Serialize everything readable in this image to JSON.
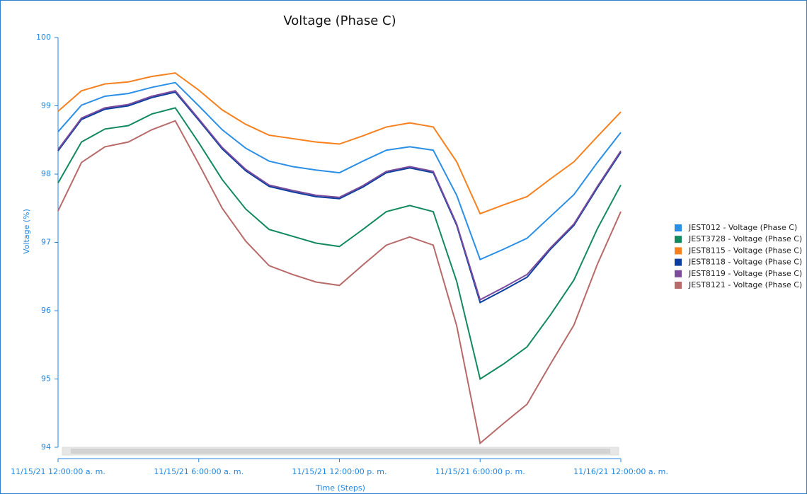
{
  "chart_data": {
    "type": "line",
    "title": "Voltage (Phase C)",
    "x_label": "Time (Steps)",
    "y_label": "Voltage (%)",
    "x": [
      0,
      1,
      2,
      3,
      4,
      5,
      6,
      7,
      8,
      9,
      10,
      11,
      12,
      13,
      14,
      15,
      16,
      17,
      18,
      19,
      20,
      21,
      22,
      23,
      24
    ],
    "xlim": [
      0,
      24
    ],
    "xticks": [
      {
        "value": 0,
        "label": "11/15/21 12:00:00 a. m."
      },
      {
        "value": 6,
        "label": "11/15/21 6:00:00 a. m."
      },
      {
        "value": 12,
        "label": "11/15/21 12:00:00 p. m."
      },
      {
        "value": 18,
        "label": "11/15/21 6:00:00 p. m."
      },
      {
        "value": 24,
        "label": "11/16/21 12:00:00 a. m."
      }
    ],
    "ylim": [
      94,
      100
    ],
    "yticks": [
      94,
      95,
      96,
      97,
      98,
      99,
      100
    ],
    "series": [
      {
        "name": "JEST012 - Voltage (Phase C)",
        "color": "#2b8fe6",
        "values": [
          98.62,
          99.01,
          99.14,
          99.18,
          99.27,
          99.34,
          99.0,
          98.65,
          98.38,
          98.19,
          98.11,
          98.06,
          98.02,
          98.19,
          98.35,
          98.4,
          98.35,
          97.69,
          96.75,
          96.9,
          97.06,
          97.38,
          97.7,
          98.17,
          98.61
        ]
      },
      {
        "name": "JEST3728 - Voltage (Phase C)",
        "color": "#138a5e",
        "values": [
          97.87,
          98.47,
          98.66,
          98.71,
          98.88,
          98.97,
          98.46,
          97.92,
          97.49,
          97.19,
          97.09,
          96.99,
          96.94,
          97.19,
          97.45,
          97.54,
          97.45,
          96.43,
          95.0,
          95.22,
          95.47,
          95.94,
          96.45,
          97.2,
          97.84
        ]
      },
      {
        "name": "JEST8115 - Voltage (Phase C)",
        "color": "#f7801f",
        "values": [
          98.92,
          99.22,
          99.32,
          99.35,
          99.43,
          99.48,
          99.23,
          98.94,
          98.73,
          98.57,
          98.52,
          98.47,
          98.44,
          98.56,
          98.69,
          98.75,
          98.69,
          98.18,
          97.42,
          97.55,
          97.67,
          97.93,
          98.18,
          98.55,
          98.91
        ]
      },
      {
        "name": "JEST8118 - Voltage (Phase C)",
        "color": "#0a3fa0",
        "values": [
          98.34,
          98.8,
          98.95,
          99.0,
          99.12,
          99.2,
          98.79,
          98.37,
          98.05,
          97.82,
          97.74,
          97.67,
          97.64,
          97.81,
          98.02,
          98.09,
          98.02,
          97.25,
          96.12,
          96.3,
          96.49,
          96.9,
          97.25,
          97.8,
          98.32
        ]
      },
      {
        "name": "JEST8119 - Voltage (Phase C)",
        "color": "#7b4c9e",
        "values": [
          98.36,
          98.82,
          98.97,
          99.02,
          99.14,
          99.22,
          98.81,
          98.39,
          98.07,
          97.84,
          97.76,
          97.69,
          97.66,
          97.83,
          98.04,
          98.11,
          98.04,
          97.27,
          96.16,
          96.34,
          96.53,
          96.92,
          97.27,
          97.82,
          98.34
        ]
      },
      {
        "name": "JEST8121 - Voltage (Phase C)",
        "color": "#b86a6a",
        "values": [
          97.46,
          98.17,
          98.4,
          98.47,
          98.65,
          98.78,
          98.15,
          97.5,
          97.02,
          96.66,
          96.53,
          96.42,
          96.37,
          96.67,
          96.96,
          97.08,
          96.96,
          95.78,
          94.06,
          94.35,
          94.63,
          95.22,
          95.79,
          96.68,
          97.45
        ]
      }
    ]
  }
}
